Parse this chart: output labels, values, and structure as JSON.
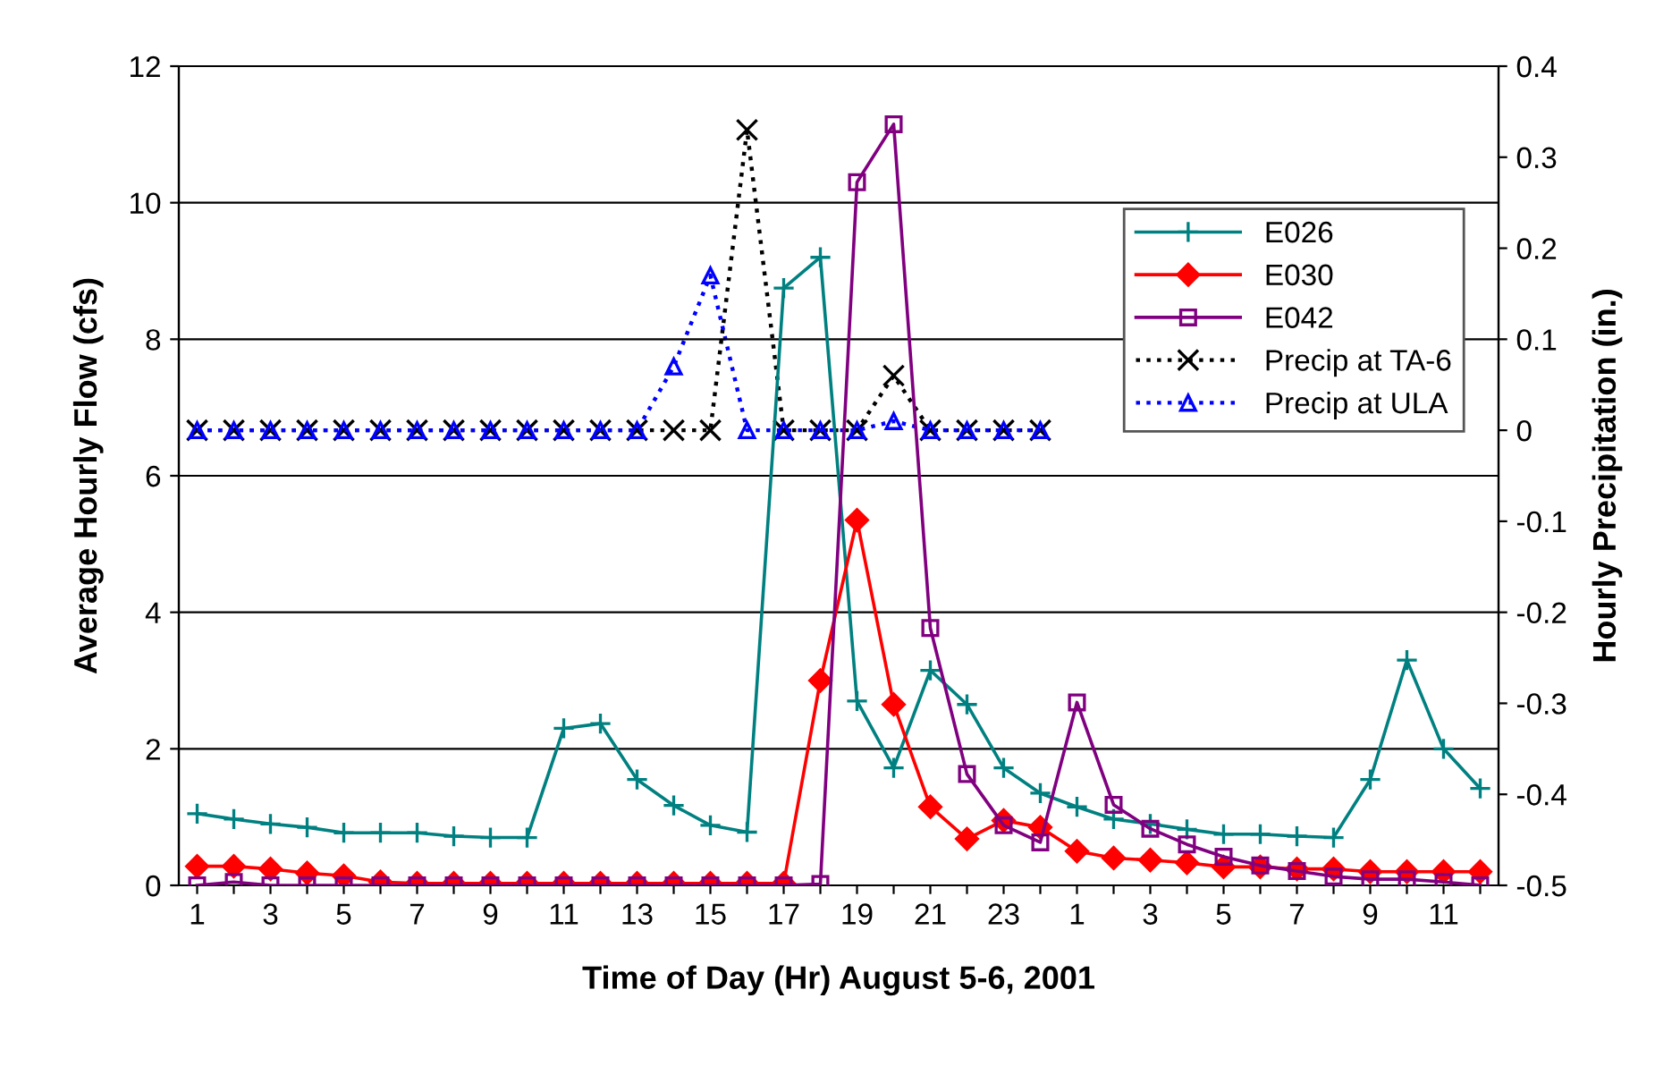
{
  "chart_data": {
    "type": "line",
    "xlabel": "Time of Day (Hr) August 5-6, 2001",
    "ylabel": "Average Hourly Flow (cfs)",
    "y2label": "Hourly Precipitation (in.)",
    "categories": [
      "1",
      null,
      "3",
      null,
      "5",
      null,
      "7",
      null,
      "9",
      null,
      "11",
      null,
      "13",
      null,
      "15",
      null,
      "17",
      null,
      "19",
      null,
      "21",
      null,
      "23",
      null,
      "1",
      null,
      "3",
      null,
      "5",
      null,
      "7",
      null,
      "9",
      null,
      "11",
      null
    ],
    "ylim": [
      0,
      12
    ],
    "yticks": [
      0,
      2,
      4,
      6,
      8,
      10,
      12
    ],
    "y2lim": [
      -0.5,
      0.4
    ],
    "y2ticks": [
      -0.5,
      -0.4,
      -0.3,
      -0.2,
      -0.1,
      0,
      0.1,
      0.2,
      0.3,
      0.4
    ],
    "grid": "y",
    "legend": "right",
    "series": [
      {
        "name": "E026",
        "color": "#008080",
        "marker": "plus",
        "line_style": "solid",
        "values": [
          1.05,
          0.97,
          0.9,
          0.85,
          0.77,
          0.77,
          0.77,
          0.72,
          0.7,
          0.7,
          2.3,
          2.37,
          1.55,
          1.17,
          0.88,
          0.78,
          8.75,
          9.2,
          2.7,
          1.72,
          3.15,
          2.65,
          1.72,
          1.35,
          1.15,
          0.97,
          0.9,
          0.82,
          0.75,
          0.75,
          0.72,
          0.7,
          1.55,
          3.3,
          2.0,
          1.42
        ]
      },
      {
        "name": "E030",
        "color": "#ff0000",
        "marker": "diamond",
        "line_style": "solid",
        "values": [
          0.28,
          0.28,
          0.24,
          0.18,
          0.14,
          0.05,
          0.03,
          0.03,
          0.03,
          0.03,
          0.03,
          0.03,
          0.03,
          0.03,
          0.03,
          0.03,
          0.03,
          3.0,
          5.35,
          2.65,
          1.15,
          0.68,
          0.95,
          0.85,
          0.5,
          0.4,
          0.37,
          0.33,
          0.27,
          0.27,
          0.24,
          0.24,
          0.2,
          0.2,
          0.2,
          0.2
        ]
      },
      {
        "name": "E042",
        "color": "#800080",
        "marker": "square",
        "line_style": "solid",
        "values": [
          0,
          0.05,
          0,
          0,
          0,
          0,
          0,
          0,
          0,
          0,
          0,
          0,
          0,
          0,
          0,
          0,
          0,
          0.02,
          10.3,
          11.15,
          3.77,
          1.63,
          0.88,
          0.63,
          2.68,
          1.18,
          0.83,
          0.6,
          0.42,
          0.29,
          0.21,
          0.13,
          0.09,
          0.09,
          0.05,
          0
        ]
      },
      {
        "name": "Precip at TA-6",
        "color": "#000000",
        "marker": "cross",
        "line_style": "dotted",
        "axis": "y2",
        "values": [
          0,
          0,
          0,
          0,
          0,
          0,
          0,
          0,
          0,
          0,
          0,
          0,
          0,
          0,
          0,
          0.33,
          0,
          0,
          0,
          0.06,
          0,
          0,
          0,
          0,
          null,
          null,
          null,
          null,
          null,
          null,
          null,
          null,
          null,
          null,
          null,
          null
        ]
      },
      {
        "name": "Precip at ULA",
        "color": "#0000ff",
        "marker": "triangle",
        "line_style": "dotted",
        "axis": "y2",
        "values": [
          0,
          0,
          0,
          0,
          0,
          0,
          0,
          0,
          0,
          0,
          0,
          0,
          0,
          0.07,
          0.17,
          0,
          0,
          0,
          0,
          0.01,
          0,
          0,
          0,
          0,
          null,
          null,
          null,
          null,
          null,
          null,
          null,
          null,
          null,
          null,
          null,
          null
        ]
      }
    ]
  }
}
